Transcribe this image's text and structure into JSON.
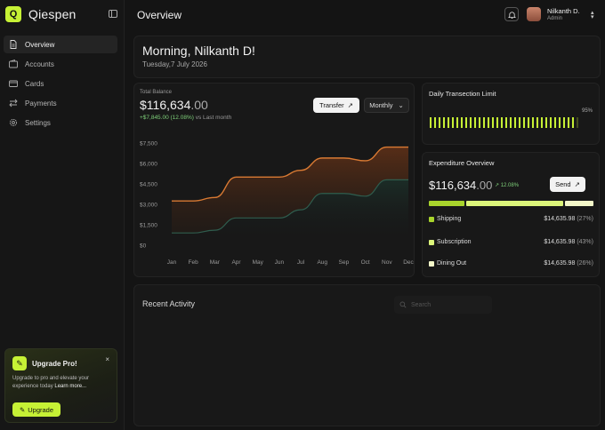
{
  "app": {
    "name": "Qiespen",
    "logo_letter": "Q"
  },
  "sidebar": {
    "items": [
      {
        "label": "Overview",
        "icon": "document-icon",
        "active": true
      },
      {
        "label": "Accounts",
        "icon": "wallet-icon",
        "active": false
      },
      {
        "label": "Cards",
        "icon": "card-icon",
        "active": false
      },
      {
        "label": "Payments",
        "icon": "transfer-icon",
        "active": false
      },
      {
        "label": "Settings",
        "icon": "gear-icon",
        "active": false
      }
    ],
    "upgrade": {
      "title": "Upgrade Pro!",
      "close": "×",
      "text": "Upgrade to pro and elevate your experience today",
      "link": "Learn more...",
      "button": "Upgrade"
    }
  },
  "header": {
    "title": "Overview",
    "user": {
      "name": "Nilkanth D.",
      "role": "Admin"
    }
  },
  "greeting": {
    "title": "Morning, Nilkanth D!",
    "date": "Tuesday,7 July 2026"
  },
  "balance": {
    "label": "Total Balance",
    "amount_main": "$116,634",
    "amount_cents": ".00",
    "change": "+$7,845.00 (12.08%)",
    "change_suffix": "vs Last month",
    "transfer_label": "Transfer",
    "period_label": "Monthly"
  },
  "chart_data": {
    "type": "area",
    "categories": [
      "Jan",
      "Feb",
      "Mar",
      "Apr",
      "May",
      "Jun",
      "Jul",
      "Aug",
      "Sep",
      "Oct",
      "Nov",
      "Dec"
    ],
    "y_ticks": [
      "$7,500",
      "$6,000",
      "$4,500",
      "$3,000",
      "$1,500",
      "$0"
    ],
    "ylim": [
      0,
      7500
    ],
    "series": [
      {
        "values": [
          3250,
          3250,
          3500,
          5000,
          5000,
          5000,
          5500,
          6400,
          6400,
          6200,
          7200,
          7200
        ],
        "color": "#d97a33"
      },
      {
        "values": [
          900,
          900,
          1100,
          2000,
          2000,
          2000,
          2600,
          3800,
          3800,
          3600,
          4800,
          4800
        ],
        "color": "#2f5d4e"
      }
    ]
  },
  "limit": {
    "title": "Daily Transection Limit",
    "percent": "95%",
    "bars_total": 34,
    "bars_filled": 34,
    "fill_fraction": 0.95
  },
  "expenditure": {
    "title": "Expenditure Overview",
    "amount_main": "$116,634",
    "amount_cents": ".00",
    "change": "12.08%",
    "send_label": "Send",
    "rows": [
      {
        "name": "Shipping",
        "value": "$14,635.98",
        "pct": "(27%)",
        "color": "#a8d42c"
      },
      {
        "name": "Subscription",
        "value": "$14,635.98",
        "pct": "(43%)",
        "color": "#dcf57a"
      },
      {
        "name": "Dining Out",
        "value": "$14,635.98",
        "pct": "(26%)",
        "color": "#f3f7c9"
      }
    ]
  },
  "activity": {
    "title": "Recent Activity",
    "search_placeholder": "Search"
  }
}
